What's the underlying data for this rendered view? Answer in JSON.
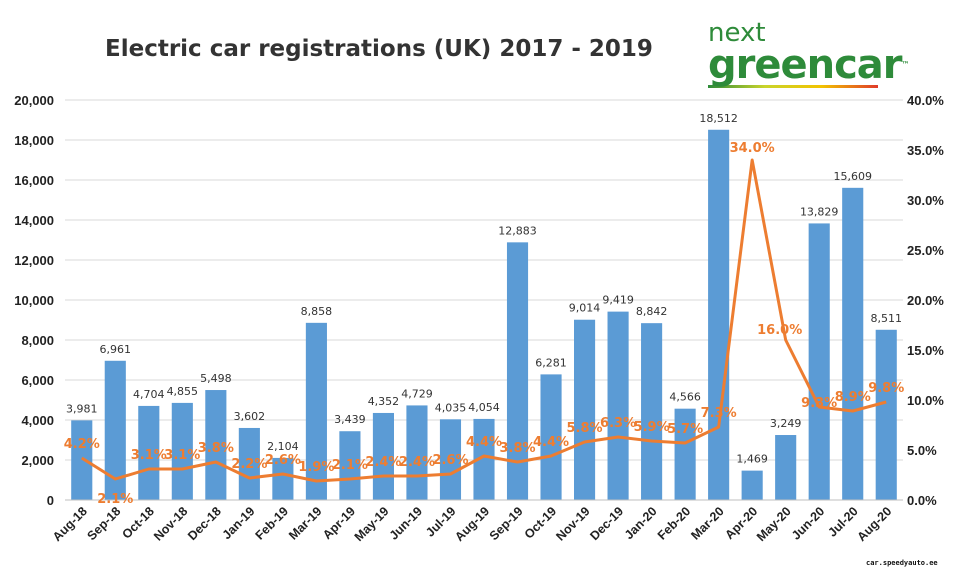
{
  "chart_data": {
    "type": "bar",
    "title": "Electric car registrations (UK) 2017 - 2019",
    "categories": [
      "Aug-18",
      "Sep-18",
      "Oct-18",
      "Nov-18",
      "Dec-18",
      "Jan-19",
      "Feb-19",
      "Mar-19",
      "Apr-19",
      "May-19",
      "Jun-19",
      "Jul-19",
      "Aug-19",
      "Sep-19",
      "Oct-19",
      "Nov-19",
      "Dec-19",
      "Jan-20",
      "Feb-20",
      "Mar-20",
      "Apr-20",
      "May-20",
      "Jun-20",
      "Jul-20",
      "Aug-20"
    ],
    "series": [
      {
        "type": "bar",
        "axis": "left",
        "color": "#5b9bd5",
        "values": [
          3981,
          6961,
          4704,
          4855,
          5498,
          3602,
          2104,
          8858,
          3439,
          4352,
          4729,
          4035,
          4054,
          12883,
          6281,
          9014,
          9419,
          8842,
          4566,
          18512,
          1469,
          3249,
          13829,
          15609,
          8511
        ],
        "labels": [
          "3,981",
          "6,961",
          "4,704",
          "4,855",
          "5,498",
          "3,602",
          "2,104",
          "8,858",
          "3,439",
          "4,352",
          "4,729",
          "4,035",
          "4,054",
          "12,883",
          "6,281",
          "9,014",
          "9,419",
          "8,842",
          "4,566",
          "18,512",
          "1,469",
          "3,249",
          "13,829",
          "15,609",
          "8,511"
        ]
      },
      {
        "type": "line",
        "axis": "right",
        "color": "#ed7d31",
        "values": [
          4.2,
          2.1,
          3.1,
          3.1,
          3.8,
          2.2,
          2.6,
          1.9,
          2.1,
          2.4,
          2.4,
          2.6,
          4.4,
          3.8,
          4.4,
          5.8,
          6.3,
          5.9,
          5.7,
          7.3,
          34.0,
          16.0,
          9.3,
          8.9,
          9.8
        ],
        "labels": [
          "4.2%",
          "2.1%",
          "3.1%",
          "3.1%",
          "3.8%",
          "2.2%",
          "2.6%",
          "1.9%",
          "2.1%",
          "2.4%",
          "2.4%",
          "2.6%",
          "4.4%",
          "3.8%",
          "4.4%",
          "5.8%",
          "6.3%",
          "5.9%",
          "5.7%",
          "7.3%",
          "34.0%",
          "16.0%",
          "9.3%",
          "8.9%",
          "9.8%"
        ]
      }
    ],
    "ylim_left": [
      0,
      20000
    ],
    "yticks_left": [
      "0",
      "2,000",
      "4,000",
      "6,000",
      "8,000",
      "10,000",
      "12,000",
      "14,000",
      "16,000",
      "18,000",
      "20,000"
    ],
    "ylim_right": [
      0,
      40
    ],
    "yticks_right": [
      "0.0%",
      "5.0%",
      "10.0%",
      "15.0%",
      "20.0%",
      "25.0%",
      "30.0%",
      "35.0%",
      "40.0%"
    ],
    "grid": true
  },
  "logo": {
    "line1": "next",
    "line2": "greencar",
    "tm": "™"
  },
  "watermark": "car.speedyauto.ee"
}
